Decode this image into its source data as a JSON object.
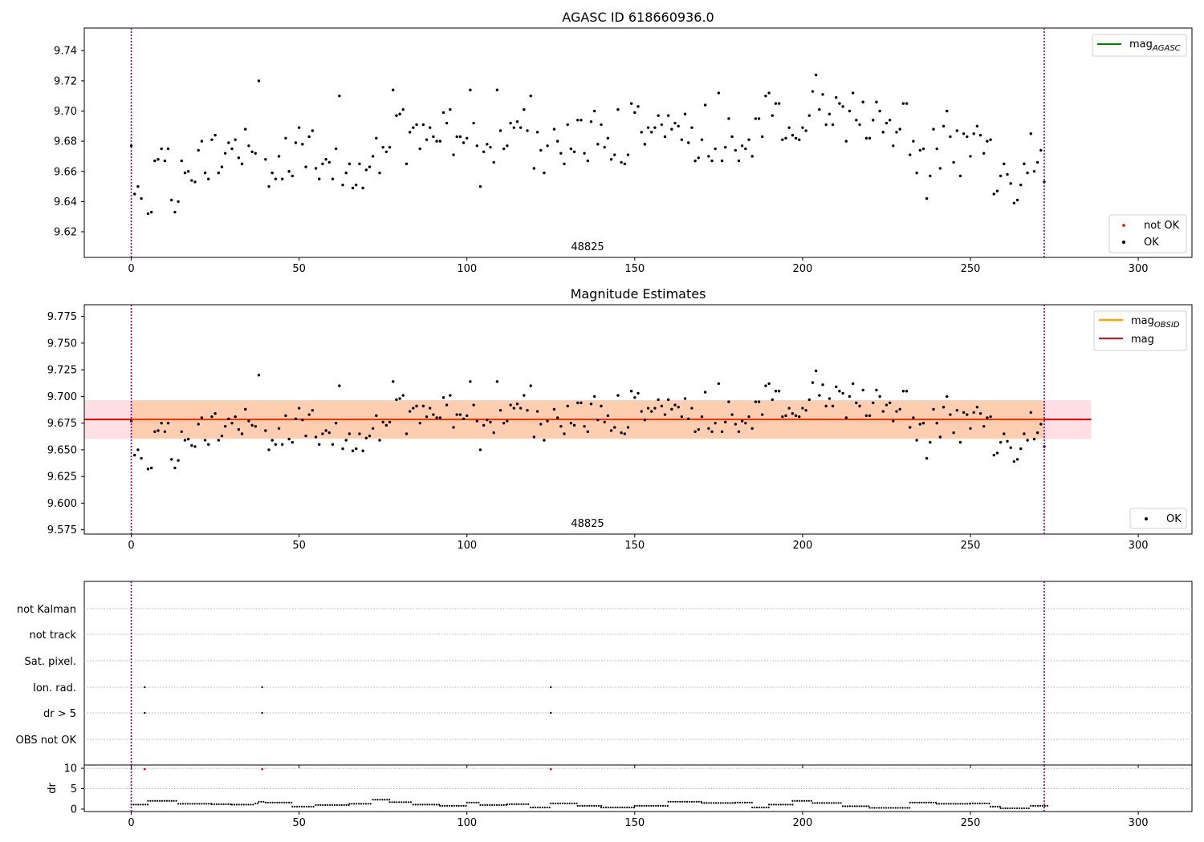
{
  "figure": {
    "title_top": "AGASC ID 618660936.0",
    "title_mid": "Magnitude Estimates",
    "obsid_label": "48825"
  },
  "chart_data": [
    {
      "type": "scatter",
      "title": "AGASC ID 618660936.0",
      "xlim": [
        -14,
        316
      ],
      "ylim": [
        9.603,
        9.755
      ],
      "xticks": [
        0,
        50,
        100,
        150,
        200,
        250,
        300
      ],
      "yticks": [
        9.62,
        9.64,
        9.66,
        9.68,
        9.7,
        9.72,
        9.74
      ],
      "ytick_labels": [
        "9.62",
        "9.64",
        "9.66",
        "9.68",
        "9.70",
        "9.72",
        "9.74"
      ],
      "vlines": [
        0,
        272
      ],
      "annotation": "48825",
      "legend_upper": [
        "mag_AGASC"
      ],
      "legend_lower": [
        "not OK",
        "OK"
      ],
      "series": [
        {
          "name": "OK",
          "color": "#000000",
          "ref": "mag_points"
        },
        {
          "name": "not OK",
          "color": "#ff0000",
          "values": []
        }
      ]
    },
    {
      "type": "scatter",
      "title": "Magnitude Estimates",
      "xlim": [
        -14,
        316
      ],
      "ylim": [
        9.571,
        9.786
      ],
      "xticks": [
        0,
        50,
        100,
        150,
        200,
        250,
        300
      ],
      "yticks": [
        9.575,
        9.6,
        9.625,
        9.65,
        9.675,
        9.7,
        9.725,
        9.75,
        9.775
      ],
      "ytick_labels": [
        "9.575",
        "9.600",
        "9.625",
        "9.650",
        "9.675",
        "9.700",
        "9.725",
        "9.750",
        "9.775"
      ],
      "vlines": [
        0,
        272
      ],
      "annotation": "48825",
      "mag": 9.6785,
      "band_pink": [
        9.6605,
        9.6965
      ],
      "band_orange": [
        9.6605,
        9.6965
      ],
      "band_xrange": [
        -14,
        286
      ],
      "legend_upper": [
        "mag_OBSID",
        "mag"
      ],
      "legend_lower": [
        "OK"
      ],
      "series": [
        {
          "name": "OK",
          "color": "#000000",
          "ref": "mag_points"
        }
      ]
    },
    {
      "type": "scatter",
      "categories": [
        "not Kalman",
        "not track",
        "Sat. pixel.",
        "Ion. rad.",
        "dr > 5",
        "OBS not OK"
      ],
      "flags": {
        "Ion. rad.": [
          4,
          39,
          125
        ],
        "dr > 5": [
          4,
          39,
          125
        ]
      },
      "xlim": [
        -14,
        316
      ],
      "xticks": [
        0,
        50,
        100,
        150,
        200,
        250,
        300
      ],
      "vlines": [
        0,
        272
      ]
    },
    {
      "type": "scatter",
      "ylabel": "dr",
      "ylim": [
        -0.6,
        10.8
      ],
      "yticks": [
        0,
        5,
        10
      ],
      "xlim": [
        -14,
        316
      ],
      "xticks": [
        0,
        50,
        100,
        150,
        200,
        250,
        300
      ],
      "vlines": [
        0,
        272
      ],
      "outliers": [
        [
          4,
          9.8
        ],
        [
          39,
          9.8
        ],
        [
          125,
          9.8
        ]
      ],
      "dr_segments": [
        [
          0,
          5,
          1.1
        ],
        [
          5,
          14,
          2.0
        ],
        [
          14,
          24,
          1.3
        ],
        [
          24,
          30,
          1.2
        ],
        [
          30,
          37,
          1.1
        ],
        [
          37,
          38,
          1.4
        ],
        [
          38,
          40,
          1.8
        ],
        [
          40,
          48,
          1.6
        ],
        [
          48,
          55,
          0.6
        ],
        [
          55,
          65,
          1.0
        ],
        [
          65,
          72,
          1.3
        ],
        [
          72,
          77,
          2.3
        ],
        [
          77,
          84,
          1.7
        ],
        [
          84,
          92,
          1.1
        ],
        [
          92,
          100,
          0.8
        ],
        [
          100,
          104,
          1.6
        ],
        [
          104,
          112,
          1.0
        ],
        [
          112,
          119,
          1.2
        ],
        [
          119,
          125,
          0.4
        ],
        [
          125,
          133,
          1.4
        ],
        [
          133,
          140,
          0.8
        ],
        [
          140,
          150,
          0.4
        ],
        [
          150,
          160,
          0.8
        ],
        [
          160,
          170,
          1.8
        ],
        [
          170,
          180,
          1.5
        ],
        [
          180,
          185,
          1.6
        ],
        [
          185,
          190,
          0.4
        ],
        [
          190,
          197,
          1.1
        ],
        [
          197,
          203,
          2.0
        ],
        [
          203,
          212,
          1.5
        ],
        [
          212,
          220,
          0.7
        ],
        [
          220,
          232,
          0.3
        ],
        [
          232,
          240,
          1.6
        ],
        [
          240,
          250,
          1.3
        ],
        [
          250,
          256,
          1.4
        ],
        [
          256,
          259,
          0.6
        ],
        [
          259,
          268,
          0.2
        ],
        [
          268,
          273,
          0.8
        ]
      ]
    }
  ],
  "mag_points": [
    [
      0,
      9.677
    ],
    [
      1,
      9.645
    ],
    [
      2,
      9.65
    ],
    [
      3,
      9.642
    ],
    [
      5,
      9.632
    ],
    [
      6,
      9.633
    ],
    [
      7,
      9.667
    ],
    [
      8,
      9.668
    ],
    [
      9,
      9.675
    ],
    [
      10,
      9.667
    ],
    [
      11,
      9.675
    ],
    [
      12,
      9.641
    ],
    [
      13,
      9.633
    ],
    [
      14,
      9.64
    ],
    [
      15,
      9.667
    ],
    [
      16,
      9.659
    ],
    [
      17,
      9.66
    ],
    [
      18,
      9.654
    ],
    [
      19,
      9.653
    ],
    [
      20,
      9.674
    ],
    [
      21,
      9.68
    ],
    [
      22,
      9.659
    ],
    [
      23,
      9.655
    ],
    [
      24,
      9.681
    ],
    [
      25,
      9.684
    ],
    [
      26,
      9.659
    ],
    [
      27,
      9.663
    ],
    [
      28,
      9.672
    ],
    [
      29,
      9.679
    ],
    [
      30,
      9.675
    ],
    [
      31,
      9.681
    ],
    [
      32,
      9.669
    ],
    [
      33,
      9.665
    ],
    [
      34,
      9.688
    ],
    [
      35,
      9.677
    ],
    [
      36,
      9.673
    ],
    [
      37,
      9.672
    ],
    [
      38,
      9.72
    ],
    [
      40,
      9.668
    ],
    [
      41,
      9.65
    ],
    [
      42,
      9.659
    ],
    [
      43,
      9.655
    ],
    [
      44,
      9.67
    ],
    [
      45,
      9.655
    ],
    [
      46,
      9.682
    ],
    [
      47,
      9.66
    ],
    [
      48,
      9.657
    ],
    [
      49,
      9.679
    ],
    [
      50,
      9.689
    ],
    [
      51,
      9.678
    ],
    [
      52,
      9.663
    ],
    [
      53,
      9.683
    ],
    [
      54,
      9.687
    ],
    [
      55,
      9.662
    ],
    [
      56,
      9.655
    ],
    [
      57,
      9.665
    ],
    [
      58,
      9.668
    ],
    [
      59,
      9.666
    ],
    [
      60,
      9.655
    ],
    [
      61,
      9.675
    ],
    [
      62,
      9.71
    ],
    [
      63,
      9.651
    ],
    [
      64,
      9.659
    ],
    [
      65,
      9.665
    ],
    [
      66,
      9.649
    ],
    [
      67,
      9.651
    ],
    [
      68,
      9.665
    ],
    [
      69,
      9.649
    ],
    [
      70,
      9.661
    ],
    [
      71,
      9.663
    ],
    [
      72,
      9.67
    ],
    [
      73,
      9.682
    ],
    [
      74,
      9.659
    ],
    [
      75,
      9.676
    ],
    [
      76,
      9.673
    ],
    [
      77,
      9.676
    ],
    [
      78,
      9.714
    ],
    [
      79,
      9.697
    ],
    [
      80,
      9.698
    ],
    [
      81,
      9.701
    ],
    [
      82,
      9.665
    ],
    [
      83,
      9.686
    ],
    [
      84,
      9.689
    ],
    [
      85,
      9.691
    ],
    [
      86,
      9.675
    ],
    [
      87,
      9.691
    ],
    [
      88,
      9.681
    ],
    [
      89,
      9.689
    ],
    [
      90,
      9.683
    ],
    [
      91,
      9.68
    ],
    [
      92,
      9.68
    ],
    [
      93,
      9.699
    ],
    [
      94,
      9.692
    ],
    [
      95,
      9.701
    ],
    [
      96,
      9.671
    ],
    [
      97,
      9.683
    ],
    [
      98,
      9.683
    ],
    [
      99,
      9.679
    ],
    [
      100,
      9.682
    ],
    [
      101,
      9.714
    ],
    [
      102,
      9.692
    ],
    [
      103,
      9.677
    ],
    [
      104,
      9.65
    ],
    [
      105,
      9.673
    ],
    [
      106,
      9.678
    ],
    [
      107,
      9.676
    ],
    [
      108,
      9.666
    ],
    [
      109,
      9.714
    ],
    [
      110,
      9.687
    ],
    [
      111,
      9.675
    ],
    [
      112,
      9.677
    ],
    [
      113,
      9.692
    ],
    [
      114,
      9.689
    ],
    [
      115,
      9.693
    ],
    [
      116,
      9.689
    ],
    [
      117,
      9.701
    ],
    [
      118,
      9.687
    ],
    [
      119,
      9.71
    ],
    [
      120,
      9.662
    ],
    [
      121,
      9.686
    ],
    [
      122,
      9.674
    ],
    [
      123,
      9.659
    ],
    [
      124,
      9.677
    ],
    [
      126,
      9.688
    ],
    [
      127,
      9.68
    ],
    [
      128,
      9.672
    ],
    [
      129,
      9.665
    ],
    [
      130,
      9.691
    ],
    [
      131,
      9.675
    ],
    [
      132,
      9.673
    ],
    [
      133,
      9.694
    ],
    [
      134,
      9.694
    ],
    [
      135,
      9.672
    ],
    [
      136,
      9.667
    ],
    [
      137,
      9.693
    ],
    [
      138,
      9.7
    ],
    [
      139,
      9.678
    ],
    [
      140,
      9.691
    ],
    [
      141,
      9.676
    ],
    [
      142,
      9.682
    ],
    [
      143,
      9.668
    ],
    [
      144,
      9.671
    ],
    [
      145,
      9.701
    ],
    [
      146,
      9.666
    ],
    [
      147,
      9.665
    ],
    [
      148,
      9.671
    ],
    [
      149,
      9.705
    ],
    [
      150,
      9.699
    ],
    [
      151,
      9.703
    ],
    [
      152,
      9.686
    ],
    [
      153,
      9.678
    ],
    [
      154,
      9.689
    ],
    [
      155,
      9.686
    ],
    [
      156,
      9.689
    ],
    [
      157,
      9.697
    ],
    [
      158,
      9.691
    ],
    [
      159,
      9.683
    ],
    [
      160,
      9.697
    ],
    [
      161,
      9.688
    ],
    [
      162,
      9.692
    ],
    [
      163,
      9.69
    ],
    [
      164,
      9.681
    ],
    [
      165,
      9.698
    ],
    [
      166,
      9.679
    ],
    [
      167,
      9.689
    ],
    [
      168,
      9.667
    ],
    [
      169,
      9.669
    ],
    [
      170,
      9.681
    ],
    [
      171,
      9.704
    ],
    [
      172,
      9.67
    ],
    [
      173,
      9.667
    ],
    [
      174,
      9.675
    ],
    [
      175,
      9.712
    ],
    [
      176,
      9.667
    ],
    [
      177,
      9.676
    ],
    [
      178,
      9.695
    ],
    [
      179,
      9.683
    ],
    [
      180,
      9.674
    ],
    [
      181,
      9.667
    ],
    [
      182,
      9.677
    ],
    [
      183,
      9.675
    ],
    [
      184,
      9.681
    ],
    [
      185,
      9.67
    ],
    [
      186,
      9.695
    ],
    [
      187,
      9.695
    ],
    [
      188,
      9.683
    ],
    [
      189,
      9.71
    ],
    [
      190,
      9.712
    ],
    [
      191,
      9.697
    ],
    [
      192,
      9.705
    ],
    [
      193,
      9.705
    ],
    [
      194,
      9.681
    ],
    [
      195,
      9.682
    ],
    [
      196,
      9.689
    ],
    [
      197,
      9.684
    ],
    [
      198,
      9.682
    ],
    [
      199,
      9.681
    ],
    [
      200,
      9.689
    ],
    [
      201,
      9.687
    ],
    [
      202,
      9.697
    ],
    [
      203,
      9.713
    ],
    [
      204,
      9.724
    ],
    [
      205,
      9.701
    ],
    [
      206,
      9.711
    ],
    [
      207,
      9.691
    ],
    [
      208,
      9.698
    ],
    [
      209,
      9.691
    ],
    [
      210,
      9.709
    ],
    [
      211,
      9.705
    ],
    [
      212,
      9.703
    ],
    [
      213,
      9.68
    ],
    [
      214,
      9.7
    ],
    [
      215,
      9.712
    ],
    [
      216,
      9.694
    ],
    [
      217,
      9.691
    ],
    [
      218,
      9.706
    ],
    [
      219,
      9.682
    ],
    [
      220,
      9.682
    ],
    [
      221,
      9.694
    ],
    [
      222,
      9.706
    ],
    [
      223,
      9.7
    ],
    [
      224,
      9.686
    ],
    [
      225,
      9.692
    ],
    [
      226,
      9.694
    ],
    [
      227,
      9.677
    ],
    [
      228,
      9.686
    ],
    [
      229,
      9.688
    ],
    [
      230,
      9.705
    ],
    [
      231,
      9.705
    ],
    [
      232,
      9.671
    ],
    [
      233,
      9.68
    ],
    [
      234,
      9.659
    ],
    [
      235,
      9.674
    ],
    [
      236,
      9.675
    ],
    [
      237,
      9.642
    ],
    [
      238,
      9.657
    ],
    [
      239,
      9.688
    ],
    [
      240,
      9.675
    ],
    [
      241,
      9.662
    ],
    [
      242,
      9.69
    ],
    [
      243,
      9.7
    ],
    [
      244,
      9.683
    ],
    [
      245,
      9.666
    ],
    [
      246,
      9.687
    ],
    [
      247,
      9.657
    ],
    [
      248,
      9.685
    ],
    [
      249,
      9.683
    ],
    [
      250,
      9.67
    ],
    [
      251,
      9.685
    ],
    [
      252,
      9.69
    ],
    [
      253,
      9.684
    ],
    [
      254,
      9.672
    ],
    [
      255,
      9.68
    ],
    [
      256,
      9.681
    ],
    [
      257,
      9.645
    ],
    [
      258,
      9.647
    ],
    [
      259,
      9.657
    ],
    [
      260,
      9.665
    ],
    [
      261,
      9.658
    ],
    [
      262,
      9.652
    ],
    [
      263,
      9.639
    ],
    [
      264,
      9.641
    ],
    [
      265,
      9.651
    ],
    [
      266,
      9.665
    ],
    [
      267,
      9.659
    ],
    [
      268,
      9.685
    ],
    [
      269,
      9.66
    ],
    [
      270,
      9.666
    ],
    [
      271,
      9.674
    ],
    [
      272,
      9.653
    ]
  ],
  "flags_panel": {
    "labels": [
      "not Kalman",
      "not track",
      "Sat. pixel.",
      "Ion. rad.",
      "dr > 5",
      "OBS not OK"
    ]
  },
  "dr_panel": {
    "ylabel": "dr",
    "ytick_labels": [
      "0",
      "5",
      "10"
    ]
  },
  "legends": {
    "agasc": "mag",
    "agasc_sub": "AGASC",
    "not_ok": "not OK",
    "ok": "OK",
    "obsid": "mag",
    "obsid_sub": "OBSID",
    "mag": "mag"
  },
  "xtick_labels": [
    "0",
    "50",
    "100",
    "150",
    "200",
    "250",
    "300"
  ],
  "colors": {
    "agasc_line": "#008000",
    "obsid_line": "#ffa500",
    "mag_line": "#ff0000",
    "band_pink": "#ffd7dc",
    "band_orange": "#ffcba8",
    "vline": "#800080",
    "not_ok": "#ff0000",
    "points": "#000000",
    "grid": "#b0b0b0"
  }
}
